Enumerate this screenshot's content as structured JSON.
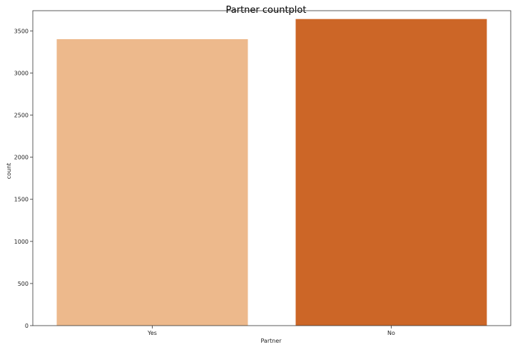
{
  "chart_data": {
    "type": "bar",
    "title": "Partner countplot",
    "xlabel": "Partner",
    "ylabel": "count",
    "categories": [
      "Yes",
      "No"
    ],
    "values": [
      3402,
      3641
    ],
    "colors": [
      "#edb98c",
      "#cc6627"
    ],
    "ylim": [
      0,
      3740
    ],
    "yticks": [
      0,
      500,
      1000,
      1500,
      2000,
      2500,
      3000,
      3500
    ],
    "grid": false
  }
}
